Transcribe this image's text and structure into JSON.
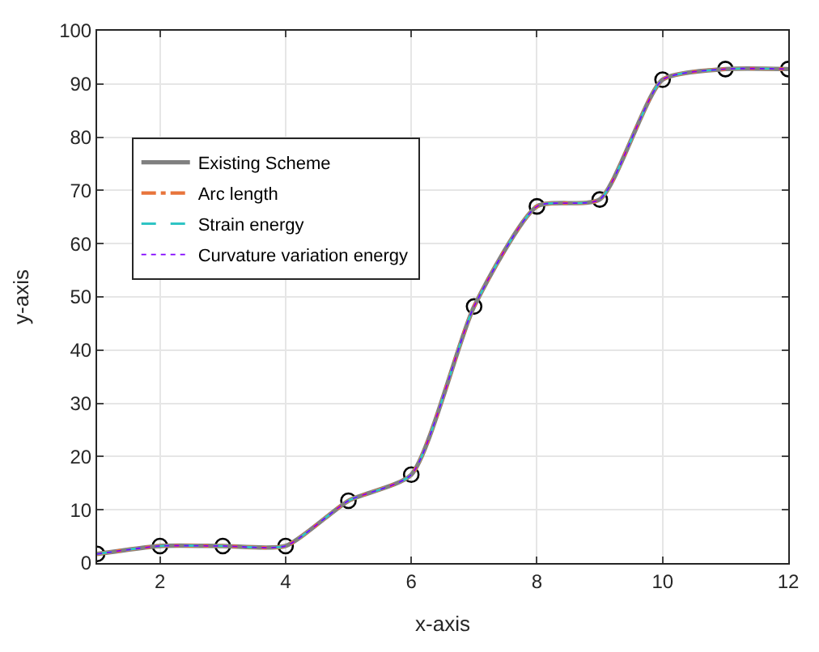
{
  "chart_data": {
    "type": "line",
    "xlabel": "x-axis",
    "ylabel": "y-axis",
    "x": [
      1,
      2,
      3,
      4,
      5,
      6,
      7,
      8,
      9,
      10,
      11,
      12
    ],
    "xlim": [
      1,
      12
    ],
    "xticks": [
      2,
      4,
      6,
      8,
      10,
      12
    ],
    "ylim": [
      0,
      100
    ],
    "yticks": [
      0,
      10,
      20,
      30,
      40,
      50,
      60,
      70,
      80,
      90,
      100
    ],
    "grid": true,
    "legend": "top left",
    "series": [
      {
        "name": "Existing Scheme",
        "color": "#808080",
        "line_style": "solid",
        "values": [
          1.7,
          3.2,
          3.2,
          3.2,
          11.7,
          16.6,
          48.2,
          67.0,
          68.3,
          90.8,
          92.8,
          92.8
        ]
      },
      {
        "name": "Arc length",
        "color": "#e8743b",
        "line_style": "dashdot",
        "values": [
          1.7,
          3.2,
          3.2,
          3.2,
          11.7,
          16.6,
          48.2,
          67.0,
          68.3,
          90.8,
          92.8,
          92.8
        ]
      },
      {
        "name": "Strain energy",
        "color": "#2fc4c4",
        "line_style": "dashed",
        "values": [
          1.7,
          3.2,
          3.2,
          3.2,
          11.7,
          16.6,
          48.2,
          67.0,
          68.3,
          90.8,
          92.8,
          92.8
        ]
      },
      {
        "name": "Curvature variation energy",
        "color": "#8000ff",
        "line_style": "dotted",
        "values": [
          1.7,
          3.2,
          3.2,
          3.2,
          11.7,
          16.6,
          48.2,
          67.0,
          68.3,
          90.8,
          92.8,
          92.8
        ]
      },
      {
        "type": "scatter",
        "marker": "circle",
        "color": "#000000",
        "values": [
          1.7,
          3.2,
          3.2,
          3.2,
          11.7,
          16.6,
          48.2,
          67.0,
          68.3,
          90.8,
          92.8,
          92.8
        ]
      }
    ]
  }
}
